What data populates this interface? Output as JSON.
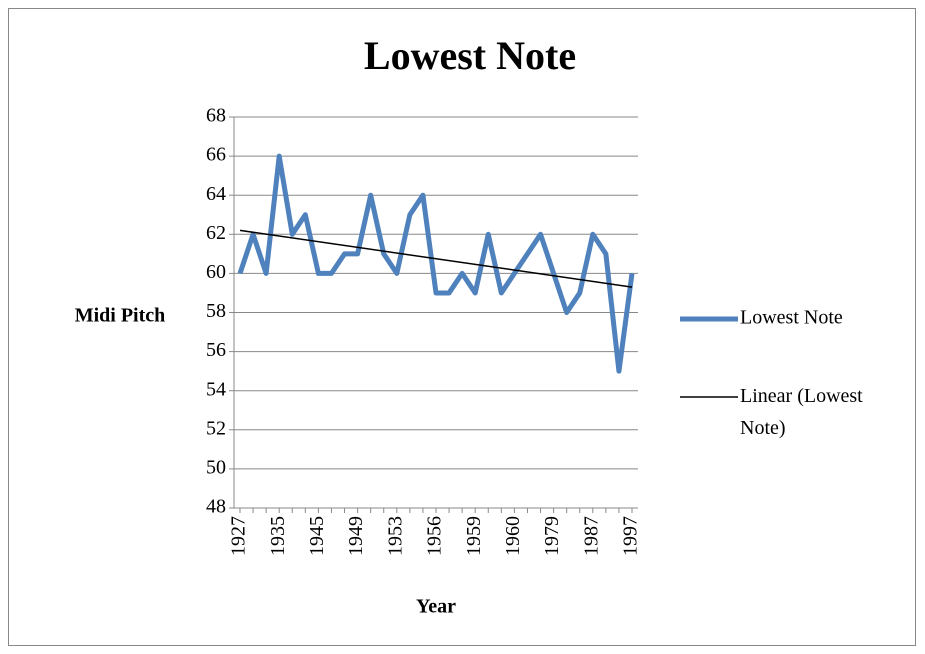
{
  "chart_data": {
    "type": "line",
    "title": "Lowest Note",
    "y_label": "Midi Pitch",
    "x_label": "Year",
    "categories": [
      "1927",
      null,
      null,
      "1935",
      null,
      null,
      "1945",
      null,
      null,
      "1949",
      null,
      null,
      "1953",
      null,
      null,
      "1956",
      null,
      null,
      "1959",
      null,
      null,
      "1960",
      null,
      null,
      "1979",
      null,
      null,
      "1987",
      null,
      null,
      "1997"
    ],
    "series": [
      {
        "name": "Lowest Note",
        "color": "#4f81bd",
        "values": [
          60,
          62,
          60,
          66,
          62,
          63,
          60,
          60,
          61,
          61,
          64,
          61,
          60,
          63,
          64,
          59,
          59,
          60,
          59,
          62,
          59,
          60,
          61,
          62,
          60,
          58,
          59,
          62,
          61,
          55,
          60
        ]
      }
    ],
    "trendline": {
      "name": "Linear (Lowest Note)",
      "color": "#000000",
      "start": 62.2,
      "end": 59.3
    },
    "ylim": [
      48,
      68
    ],
    "yticks": [
      48,
      50,
      52,
      54,
      56,
      58,
      60,
      62,
      64,
      66,
      68
    ],
    "grid": true
  }
}
